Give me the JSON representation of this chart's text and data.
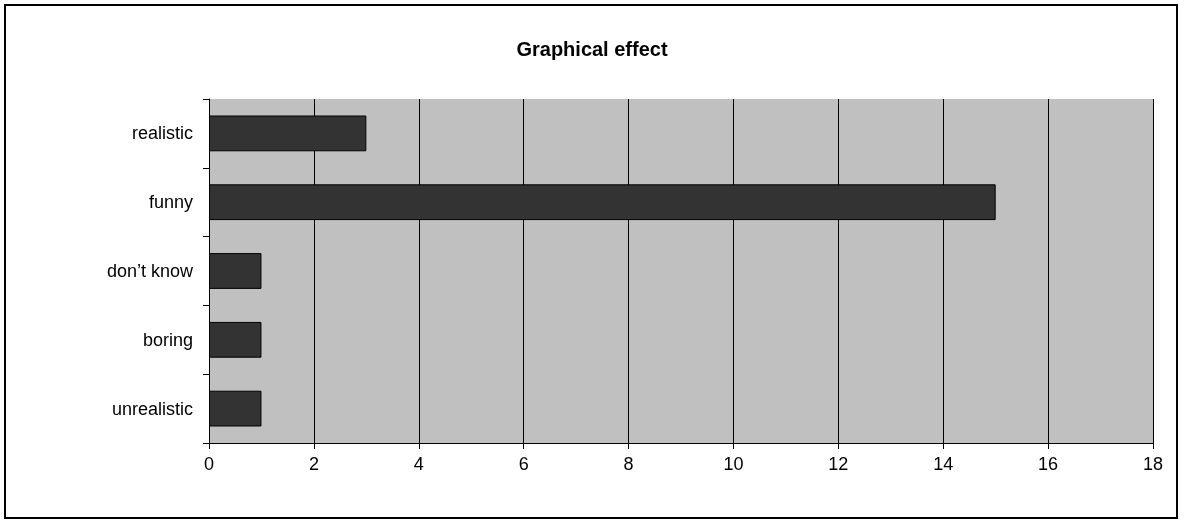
{
  "chart_data": {
    "type": "bar",
    "title": "Graphical effect",
    "orientation": "horizontal",
    "categories": [
      "realistic",
      "funny",
      "don’t know",
      "boring",
      "unrealistic"
    ],
    "values": [
      3,
      15,
      1,
      1,
      1
    ],
    "color": "#333333",
    "xlim": [
      0,
      18
    ],
    "xticks": [
      0,
      2,
      4,
      6,
      8,
      10,
      12,
      14,
      16,
      18
    ],
    "grid": "x"
  }
}
